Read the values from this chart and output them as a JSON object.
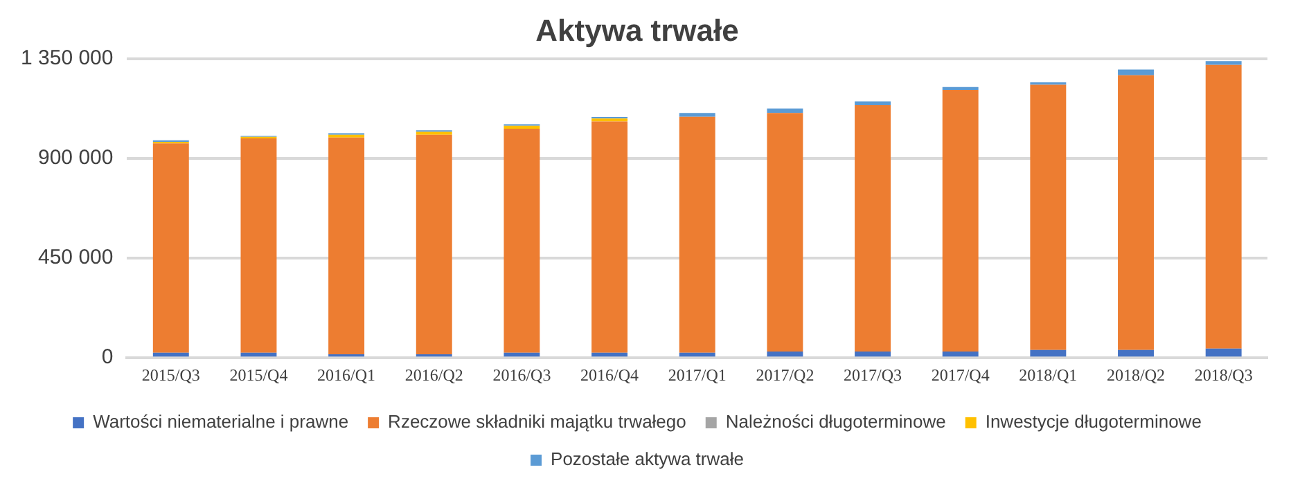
{
  "chart_data": {
    "type": "bar",
    "title": "Aktywa trwałe",
    "stacked": true,
    "grid": "y",
    "legend": "bottom",
    "categories": [
      "2015/Q3",
      "2015/Q4",
      "2016/Q1",
      "2016/Q2",
      "2016/Q3",
      "2016/Q4",
      "2017/Q1",
      "2017/Q2",
      "2017/Q3",
      "2017/Q4",
      "2018/Q1",
      "2018/Q2",
      "2018/Q3"
    ],
    "ylim": [
      0,
      1350000
    ],
    "yticks": [
      {
        "value": 0,
        "label": "0"
      },
      {
        "value": 450000,
        "label": "450 000"
      },
      {
        "value": 900000,
        "label": "900 000"
      },
      {
        "value": 1350000,
        "label": "1 350 000"
      }
    ],
    "series": [
      {
        "name": "Wartości niematerialne i prawne",
        "color": "#4472c4",
        "values": [
          23000,
          23000,
          16000,
          16000,
          23000,
          23000,
          23000,
          29000,
          29000,
          29000,
          36000,
          36000,
          42000
        ]
      },
      {
        "name": "Rzeczowe składniki majątku trwałego",
        "color": "#ed7d31",
        "values": [
          945000,
          967000,
          978000,
          991000,
          1011000,
          1044000,
          1065000,
          1076000,
          1111000,
          1180000,
          1196000,
          1239000,
          1280000
        ]
      },
      {
        "name": "Należności długoterminowe",
        "color": "#a5a5a5",
        "values": [
          0,
          0,
          0,
          0,
          0,
          0,
          0,
          0,
          0,
          0,
          0,
          0,
          0
        ]
      },
      {
        "name": "Inwestycje długoterminowe",
        "color": "#ffc000",
        "values": [
          7000,
          7000,
          13000,
          13000,
          13000,
          13000,
          0,
          0,
          0,
          0,
          0,
          0,
          0
        ]
      },
      {
        "name": "Pozostałe aktywa trwałe",
        "color": "#5b9bd5",
        "values": [
          7000,
          4000,
          7000,
          7000,
          7000,
          7000,
          17000,
          20000,
          17000,
          13000,
          11000,
          26000,
          17000
        ]
      }
    ]
  }
}
